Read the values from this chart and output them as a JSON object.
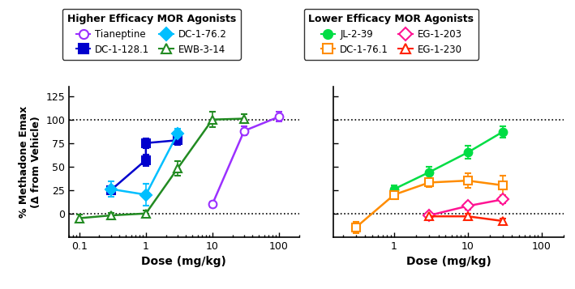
{
  "left_panel": {
    "title": "Higher Efficacy MOR Agonists",
    "series": [
      {
        "label": "Tianeptine",
        "color": "#9B30FF",
        "marker": "o",
        "filled": false,
        "x": [
          10,
          30,
          100
        ],
        "y": [
          10,
          88,
          103
        ],
        "yerr": [
          3,
          5,
          5
        ]
      },
      {
        "label": "DC-1-128.1",
        "color": "#0000CD",
        "marker": "s",
        "filled": true,
        "x": [
          0.3,
          1,
          1,
          3
        ],
        "y": [
          25,
          57,
          75,
          78
        ],
        "yerr": [
          4,
          6,
          5,
          5
        ]
      },
      {
        "label": "DC-1-76.2",
        "color": "#00BFFF",
        "marker": "D",
        "filled": true,
        "x": [
          0.3,
          1,
          3
        ],
        "y": [
          26,
          20,
          85
        ],
        "yerr": [
          8,
          12,
          5
        ]
      },
      {
        "label": "EWB-3-14",
        "color": "#228B22",
        "marker": "^",
        "filled": false,
        "x": [
          0.1,
          0.3,
          1,
          3,
          10,
          30
        ],
        "y": [
          -5,
          -2,
          0,
          48,
          100,
          101
        ],
        "yerr": [
          4,
          3,
          3,
          8,
          8,
          5
        ]
      }
    ],
    "xlim": [
      0.07,
      200
    ],
    "ylim": [
      -25,
      135
    ],
    "yticks": [
      0,
      25,
      50,
      75,
      100,
      125
    ],
    "xlabel": "Dose (mg/kg)",
    "ylabel": "% Methadone Emax\n(Δ from Vehicle)"
  },
  "right_panel": {
    "title": "Lower Efficacy MOR Agonists",
    "series": [
      {
        "label": "JL-2-39",
        "color": "#00DD44",
        "marker": "o",
        "filled": true,
        "x": [
          1,
          3,
          10,
          30
        ],
        "y": [
          26,
          44,
          65,
          87
        ],
        "yerr": [
          4,
          6,
          7,
          6
        ]
      },
      {
        "label": "DC-1-76.1",
        "color": "#FF8C00",
        "marker": "s",
        "filled": false,
        "x": [
          0.3,
          1,
          3,
          10,
          30
        ],
        "y": [
          -15,
          20,
          33,
          35,
          30
        ],
        "yerr": [
          6,
          5,
          5,
          8,
          10
        ]
      },
      {
        "label": "EG-1-203",
        "color": "#FF1493",
        "marker": "D",
        "filled": false,
        "x": [
          3,
          10,
          30
        ],
        "y": [
          -2,
          8,
          15
        ],
        "yerr": [
          3,
          4,
          4
        ]
      },
      {
        "label": "EG-1-230",
        "color": "#FF2200",
        "marker": "^",
        "filled": false,
        "x": [
          3,
          10,
          30
        ],
        "y": [
          -3,
          -3,
          -8
        ],
        "yerr": [
          3,
          3,
          3
        ]
      }
    ],
    "xlim": [
      0.15,
      200
    ],
    "ylim": [
      -25,
      135
    ],
    "yticks": [
      0,
      25,
      50,
      75,
      100,
      125
    ],
    "xlabel": "Dose (mg/kg)",
    "ylabel": ""
  }
}
